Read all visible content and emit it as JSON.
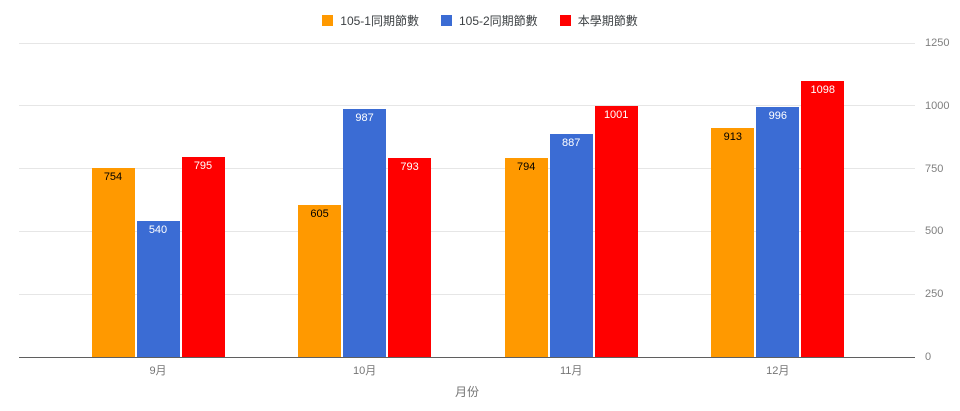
{
  "chart_data": {
    "type": "bar",
    "categories": [
      "9月",
      "10月",
      "11月",
      "12月"
    ],
    "series": [
      {
        "name": "105-1同期節數",
        "color": "#FF9900",
        "label_color": "#000000",
        "values": [
          754,
          605,
          794,
          913
        ]
      },
      {
        "name": "105-2同期節數",
        "color": "#3B6CD4",
        "label_color": "#FFFFFF",
        "values": [
          540,
          987,
          887,
          996
        ]
      },
      {
        "name": "本學期節數",
        "color": "#FF0000",
        "label_color": "#FFFFFF",
        "values": [
          795,
          793,
          1001,
          1098
        ]
      }
    ],
    "title": "",
    "xlabel": "月份",
    "ylabel": "",
    "ylim": [
      0,
      1250
    ],
    "yticks": [
      0,
      250,
      500,
      750,
      1000,
      1250
    ],
    "grid": true,
    "legend_position": "top",
    "y_axis_side": "right"
  }
}
